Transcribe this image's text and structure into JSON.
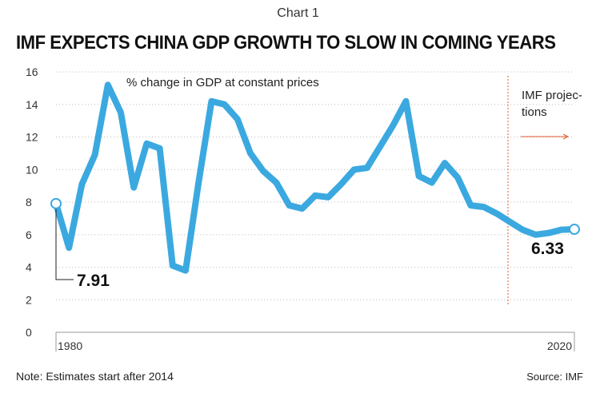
{
  "kicker": "Chart 1",
  "chart_data": {
    "type": "line",
    "title": "IMF EXPECTS CHINA GDP GROWTH TO SLOW IN COMING YEARS",
    "annotation": "% change in GDP at constant prices",
    "projection_label_line1": "IMF projec-",
    "projection_label_line2": "tions",
    "projection_start_year": 2015,
    "ylim": [
      0,
      16
    ],
    "yticks": [
      0,
      2,
      4,
      6,
      8,
      10,
      12,
      14,
      16
    ],
    "xlim": [
      1980,
      2020
    ],
    "xtick_labels": [
      "1980",
      "2020"
    ],
    "first_label": "7.91",
    "last_label": "6.33",
    "series": [
      {
        "color": "#3ba9e0",
        "x": [
          1980,
          1981,
          1982,
          1983,
          1984,
          1985,
          1986,
          1987,
          1988,
          1989,
          1990,
          1991,
          1992,
          1993,
          1994,
          1995,
          1996,
          1997,
          1998,
          1999,
          2000,
          2001,
          2002,
          2003,
          2004,
          2005,
          2006,
          2007,
          2008,
          2009,
          2010,
          2011,
          2012,
          2013,
          2014,
          2015,
          2016,
          2017,
          2018,
          2019,
          2020
        ],
        "values": [
          7.91,
          5.2,
          9.1,
          10.9,
          15.2,
          13.5,
          8.9,
          11.6,
          11.3,
          4.1,
          3.8,
          9.2,
          14.2,
          14.0,
          13.1,
          11.0,
          9.9,
          9.2,
          7.8,
          7.6,
          8.4,
          8.3,
          9.1,
          10.0,
          10.1,
          11.4,
          12.7,
          14.2,
          9.6,
          9.2,
          10.4,
          9.5,
          7.8,
          7.7,
          7.3,
          6.8,
          6.3,
          6.0,
          6.1,
          6.3,
          6.33
        ]
      }
    ]
  },
  "footer": {
    "note": "Note: Estimates start after 2014",
    "source": "Source: IMF"
  }
}
